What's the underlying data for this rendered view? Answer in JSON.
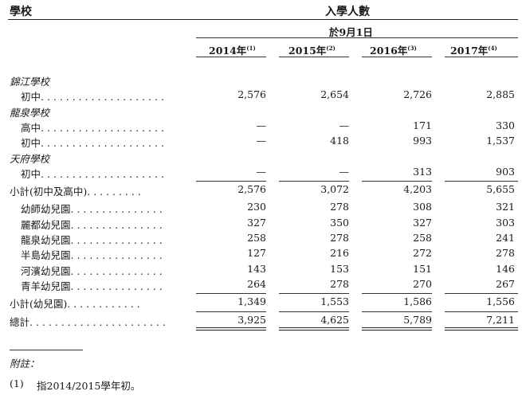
{
  "header": {
    "school_label": "學校",
    "enrollment_label": "入學人數",
    "as_of_label": "於9月1日",
    "years": [
      {
        "year": "2014年",
        "note": "(1)"
      },
      {
        "year": "2015年",
        "note": "(2)"
      },
      {
        "year": "2016年",
        "note": "(3)"
      },
      {
        "year": "2017年",
        "note": "(4)"
      }
    ]
  },
  "rows": [
    {
      "type": "group",
      "label": "錦江學校"
    },
    {
      "type": "row",
      "label": "初中. . . . . . . . . . . . . . . . . . . .",
      "values": [
        "2,576",
        "2,654",
        "2,726",
        "2,885"
      ]
    },
    {
      "type": "group",
      "label": "龍泉學校"
    },
    {
      "type": "row",
      "label": "高中. . . . . . . . . . . . . . . . . . . .",
      "values": [
        "—",
        "—",
        "171",
        "330"
      ]
    },
    {
      "type": "row",
      "label": "初中. . . . . . . . . . . . . . . . . . . .",
      "values": [
        "—",
        "418",
        "993",
        "1,537"
      ]
    },
    {
      "type": "group",
      "label": "天府學校"
    },
    {
      "type": "row",
      "label": "初中. . . . . . . . . . . . . . . . . . . .",
      "values": [
        "—",
        "—",
        "313",
        "903"
      ]
    },
    {
      "type": "subtotal",
      "label": "小計(初中及高中). . . . . . . . .",
      "values": [
        "2,576",
        "3,072",
        "4,203",
        "5,655"
      ]
    },
    {
      "type": "row",
      "label": "幼師幼兒園. . . . . . . . . . . . . . .",
      "values": [
        "230",
        "278",
        "308",
        "321"
      ]
    },
    {
      "type": "row",
      "label": "麗都幼兒園. . . . . . . . . . . . . . .",
      "values": [
        "327",
        "350",
        "327",
        "303"
      ]
    },
    {
      "type": "row",
      "label": "龍泉幼兒園. . . . . . . . . . . . . . .",
      "values": [
        "258",
        "278",
        "258",
        "241"
      ]
    },
    {
      "type": "row",
      "label": "半島幼兒園. . . . . . . . . . . . . . .",
      "values": [
        "127",
        "216",
        "272",
        "278"
      ]
    },
    {
      "type": "row",
      "label": "河濱幼兒園. . . . . . . . . . . . . . .",
      "values": [
        "143",
        "153",
        "151",
        "146"
      ]
    },
    {
      "type": "row",
      "label": "青羊幼兒園. . . . . . . . . . . . . . .",
      "values": [
        "264",
        "278",
        "270",
        "267"
      ]
    },
    {
      "type": "subtotal",
      "label": "小計(幼兒園). . . . . . . . . . . .",
      "values": [
        "1,349",
        "1,553",
        "1,586",
        "1,556"
      ]
    },
    {
      "type": "total",
      "label": "總計. . . . . . . . . . . . . . . . . . . . . .",
      "values": [
        "3,925",
        "4,625",
        "5,789",
        "7,211"
      ]
    }
  ],
  "footnotes": {
    "title": "附註：",
    "items": [
      {
        "marker": "(1)",
        "text": "指2014/2015學年初。"
      }
    ]
  }
}
